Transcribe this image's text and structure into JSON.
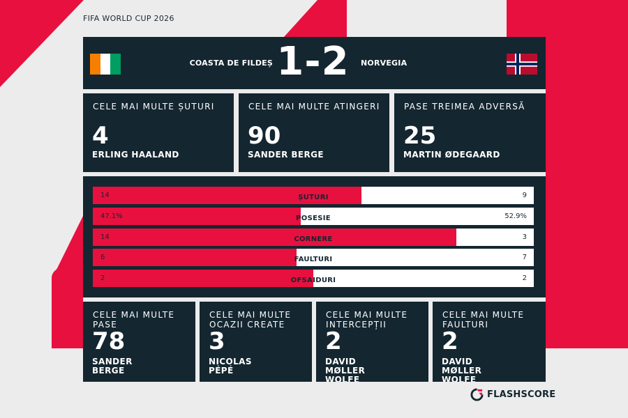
{
  "competition": "FIFA WORLD CUP 2026",
  "match": {
    "home_team": "COASTA DE FILDEȘ",
    "away_team": "NORVEGIA",
    "score": "1-2",
    "home_flag_icon": "ivory-coast-flag-icon",
    "away_flag_icon": "norway-flag-icon"
  },
  "top_leaders": [
    {
      "title": "CELE MAI MULTE ȘUTURI",
      "value": "4",
      "player": "ERLING HAALAND"
    },
    {
      "title": "CELE MAI MULTE ATINGERI",
      "value": "90",
      "player": "SANDER BERGE"
    },
    {
      "title": "PASE TREIMEA ADVERSĂ",
      "value": "25",
      "player": "MARTIN ØDEGAARD"
    }
  ],
  "stats": [
    {
      "label": "ȘUTURI",
      "home": "14",
      "away": "9",
      "home_share": 0.609
    },
    {
      "label": "POSESIE",
      "home": "47.1%",
      "away": "52.9%",
      "home_share": 0.471
    },
    {
      "label": "CORNERE",
      "home": "14",
      "away": "3",
      "home_share": 0.824
    },
    {
      "label": "FAULTURI",
      "home": "6",
      "away": "7",
      "home_share": 0.462
    },
    {
      "label": "OFSAIDURI",
      "home": "2",
      "away": "2",
      "home_share": 0.5
    }
  ],
  "bottom_leaders": [
    {
      "title": "CELE MAI MULTE PASE",
      "value": "78",
      "player": "SANDER BERGE"
    },
    {
      "title": "CELE MAI MULTE OCAZII CREATE",
      "value": "3",
      "player": "Nicolas Pépé"
    },
    {
      "title": "CELE MAI MULTE INTERCEPȚII",
      "value": "2",
      "player": "DAVID MØLLER WOLFE"
    },
    {
      "title": "CELE MAI MULTE FAULTURI",
      "value": "2",
      "player": "DAVID MØLLER WOLFE"
    }
  ],
  "brand": {
    "name": "FLASHSCORE",
    "icon": "flashscore-logo-icon"
  },
  "colors": {
    "accent": "#e8103f",
    "panel": "#142630",
    "background": "#ececec"
  }
}
